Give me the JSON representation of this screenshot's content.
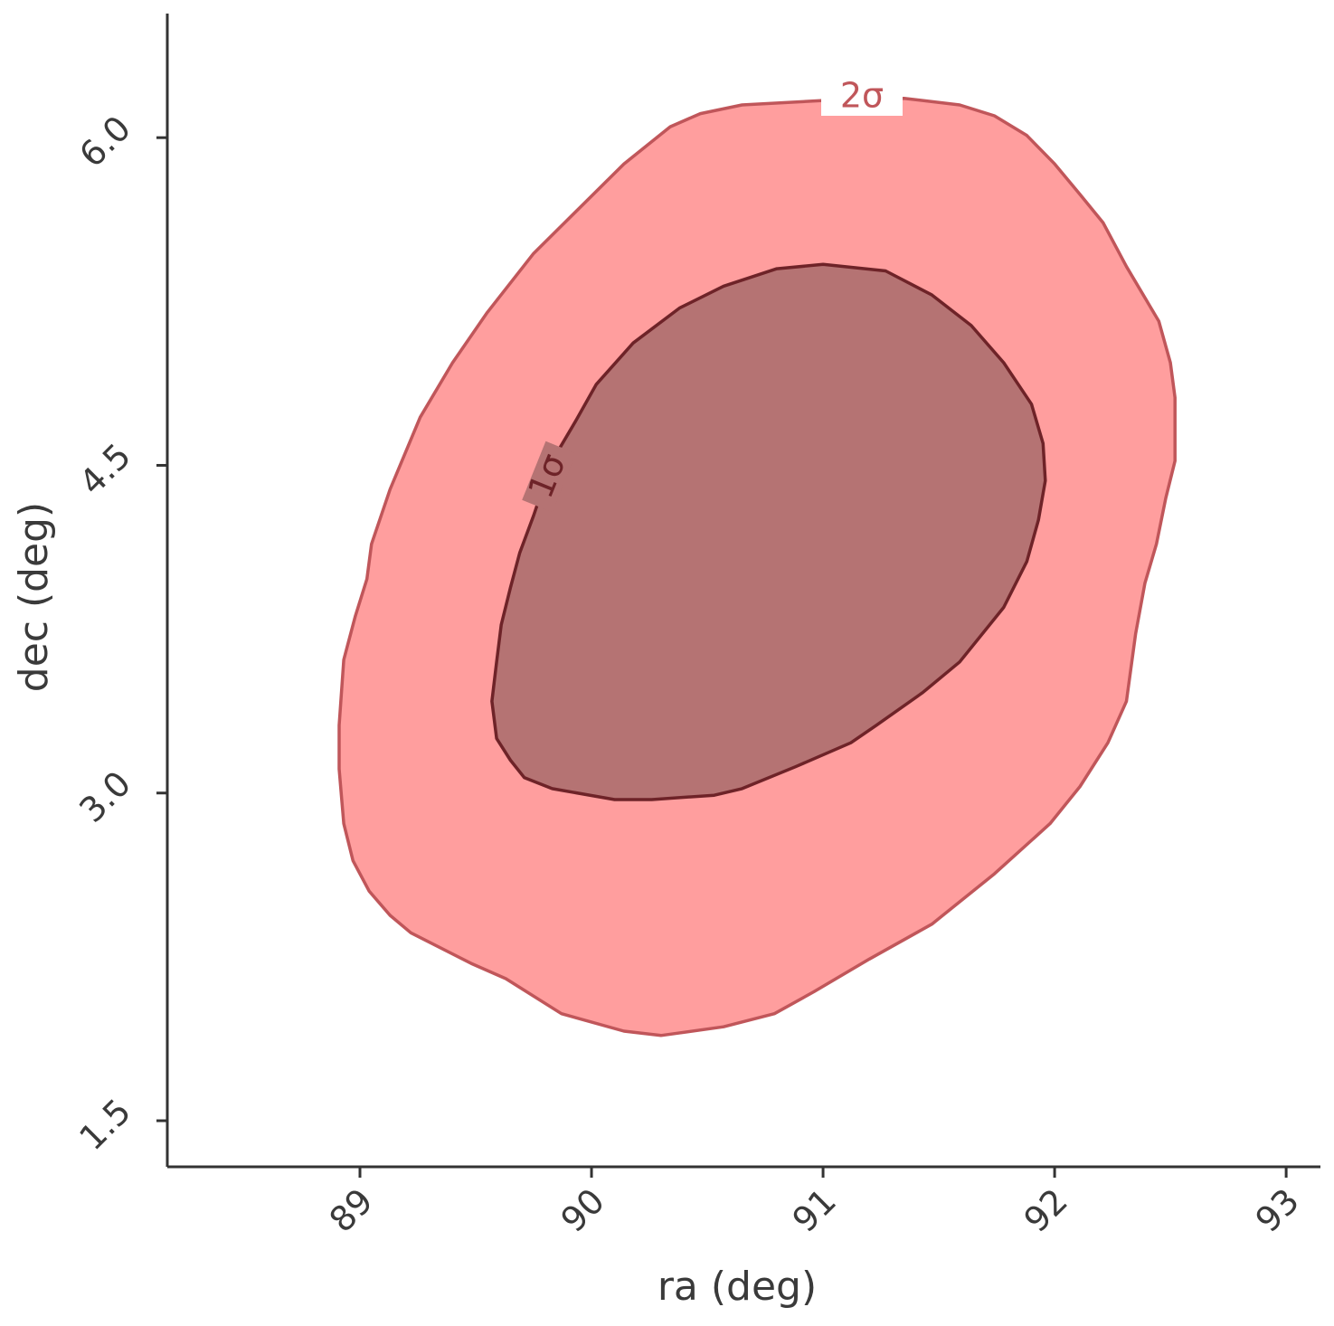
{
  "chart_data": {
    "type": "contour",
    "xlabel": "ra (deg)",
    "ylabel": "dec (deg)",
    "xlim": [
      88.168,
      93.148
    ],
    "ylim": [
      1.289,
      6.568
    ],
    "xticks": [
      89,
      90,
      91,
      92,
      93
    ],
    "yticks": [
      1.5,
      {
        "value": 3.0,
        "label": "3.0"
      },
      4.5,
      {
        "value": 6.0,
        "label": "6.0"
      }
    ],
    "series": [
      {
        "name": "2σ",
        "color": "#ff9e9e",
        "edgecolor": "#c0565a",
        "x": [
          90.34,
          90.47,
          90.65,
          91.0,
          91.35,
          91.59,
          91.74,
          91.88,
          92.0,
          92.11,
          92.21,
          92.31,
          92.45,
          92.5,
          92.52,
          92.52,
          92.48,
          92.44,
          92.39,
          92.35,
          92.31,
          92.23,
          92.11,
          91.98,
          91.74,
          91.47,
          91.2,
          90.96,
          90.79,
          90.57,
          90.3,
          90.14,
          89.87,
          89.63,
          89.48,
          89.22,
          89.13,
          89.04,
          88.97,
          88.93,
          88.91,
          88.91,
          88.93,
          88.98,
          89.03,
          89.05,
          89.13,
          89.26,
          89.4,
          89.55,
          89.75,
          89.95,
          90.14
        ],
        "y": [
          6.05,
          6.11,
          6.15,
          6.17,
          6.18,
          6.15,
          6.1,
          6.01,
          5.88,
          5.74,
          5.61,
          5.41,
          5.16,
          4.97,
          4.81,
          4.52,
          4.35,
          4.14,
          3.96,
          3.73,
          3.42,
          3.23,
          3.03,
          2.86,
          2.63,
          2.4,
          2.24,
          2.09,
          1.99,
          1.93,
          1.89,
          1.91,
          1.99,
          2.15,
          2.22,
          2.36,
          2.44,
          2.55,
          2.69,
          2.86,
          3.11,
          3.31,
          3.61,
          3.81,
          3.98,
          4.14,
          4.39,
          4.72,
          4.97,
          5.2,
          5.47,
          5.68,
          5.88
        ]
      },
      {
        "name": "1σ",
        "color": "#b57373",
        "edgecolor": "#6e2328",
        "x": [
          91.0,
          91.27,
          91.47,
          91.64,
          91.78,
          91.9,
          91.95,
          91.96,
          91.93,
          91.88,
          91.78,
          91.59,
          91.43,
          91.23,
          91.12,
          90.88,
          90.65,
          90.53,
          90.26,
          90.1,
          89.83,
          89.71,
          89.65,
          89.59,
          89.57,
          89.59,
          89.61,
          89.65,
          89.69,
          89.75,
          89.83,
          89.93,
          90.02,
          90.18,
          90.38,
          90.57,
          90.8
        ],
        "y": [
          5.42,
          5.39,
          5.28,
          5.14,
          4.97,
          4.78,
          4.6,
          4.43,
          4.25,
          4.06,
          3.85,
          3.6,
          3.46,
          3.31,
          3.23,
          3.12,
          3.02,
          2.99,
          2.97,
          2.97,
          3.02,
          3.07,
          3.15,
          3.25,
          3.42,
          3.6,
          3.77,
          3.94,
          4.1,
          4.27,
          4.52,
          4.7,
          4.87,
          5.06,
          5.22,
          5.32,
          5.4
        ]
      }
    ]
  }
}
